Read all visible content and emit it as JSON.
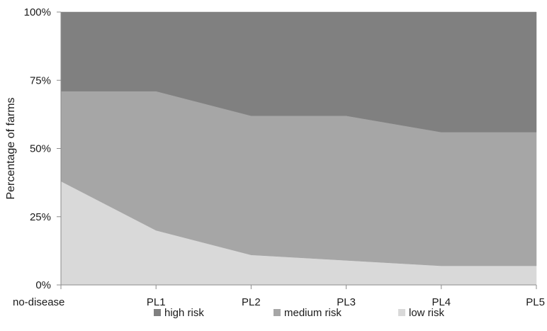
{
  "chart_data": {
    "type": "area",
    "stacked": true,
    "categories": [
      "no-disease",
      "PL1",
      "PL2",
      "PL3",
      "PL4",
      "PL5"
    ],
    "series": [
      {
        "name": "low risk",
        "color": "#d9d9d9",
        "values": [
          38,
          20,
          11,
          9,
          7,
          7
        ]
      },
      {
        "name": "medium risk",
        "color": "#a6a6a6",
        "values": [
          33,
          51,
          51,
          53,
          49,
          49
        ]
      },
      {
        "name": "high risk",
        "color": "#808080",
        "values": [
          29,
          29,
          38,
          38,
          44,
          44
        ]
      }
    ],
    "ylabel": "Percentage of farms",
    "ylim": [
      0,
      100
    ],
    "yticks": [
      "0%",
      "25%",
      "50%",
      "75%",
      "100%"
    ],
    "legend": {
      "position": "bottom",
      "order": [
        "high risk",
        "medium risk",
        "low risk"
      ]
    },
    "grid": false
  }
}
